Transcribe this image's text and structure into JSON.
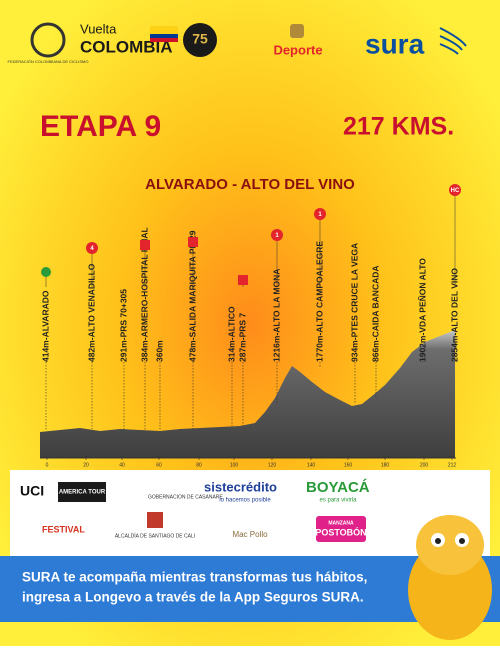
{
  "header": {
    "federation": "FEDERACIÓN COLOMBIANA DE CICLISMO",
    "vuelta": "Vuelta",
    "colombia": "COLOMBIA",
    "anniversary": "75",
    "ministry": "Deporte",
    "sura": "sura"
  },
  "stage": {
    "title": "ETAPA 9",
    "distance": "217 KMS.",
    "route": "ALVARADO - ALTO DEL VINO"
  },
  "waypoints": [
    {
      "label": "414m-ALVARADO"
    },
    {
      "label": "482m-ALTO VENADILLO",
      "badge": "4"
    },
    {
      "label": "291m-PRS 70+305"
    },
    {
      "label": "384m-ARMERO-HOSPITAL FINAL"
    },
    {
      "label": "360m"
    },
    {
      "label": "478m-SALIDA MARIQUITA PK 29"
    },
    {
      "label": "314m-ALTICO"
    },
    {
      "label": "287m-PRS 7"
    },
    {
      "label": "1216m-ALTO LA MONA",
      "badge": "1"
    },
    {
      "label": "1770m-ALTO CAMPOALEGRE",
      "badge": "1"
    },
    {
      "label": "934m-PTES CRUCE LA VEGA"
    },
    {
      "label": "866m-CAIDA BANCADA"
    },
    {
      "label": "1902m-VDA PEÑON ALTO"
    },
    {
      "label": "2854m-ALTO DEL VINO",
      "badge": "HC"
    }
  ],
  "km_ticks": [
    "0",
    "20",
    "40",
    "60",
    "80",
    "100",
    "120",
    "140",
    "160",
    "180",
    "200",
    "212"
  ],
  "sponsors": {
    "uci": "UCI",
    "america": "AMERICA TOUR",
    "casanare": "GOBERNACION DE CASANARE",
    "siste": "sistecrédito",
    "siste_sub": "lo hacemos posible",
    "boyaca": "BOYACÁ",
    "boyaca_sub": "es para vivirla",
    "festival": "FESTIVAL",
    "cali": "ALCALDÍA DE SANTIAGO DE CALI",
    "macpollo": "Mac Pollo",
    "postobon_top": "MANZANA",
    "postobon": "POSTOBÓN"
  },
  "banner": {
    "line1": "SURA te acompaña mientras transformas tus hábitos,",
    "line2": "ingresa a Longevo a través de la App Seguros SURA."
  }
}
